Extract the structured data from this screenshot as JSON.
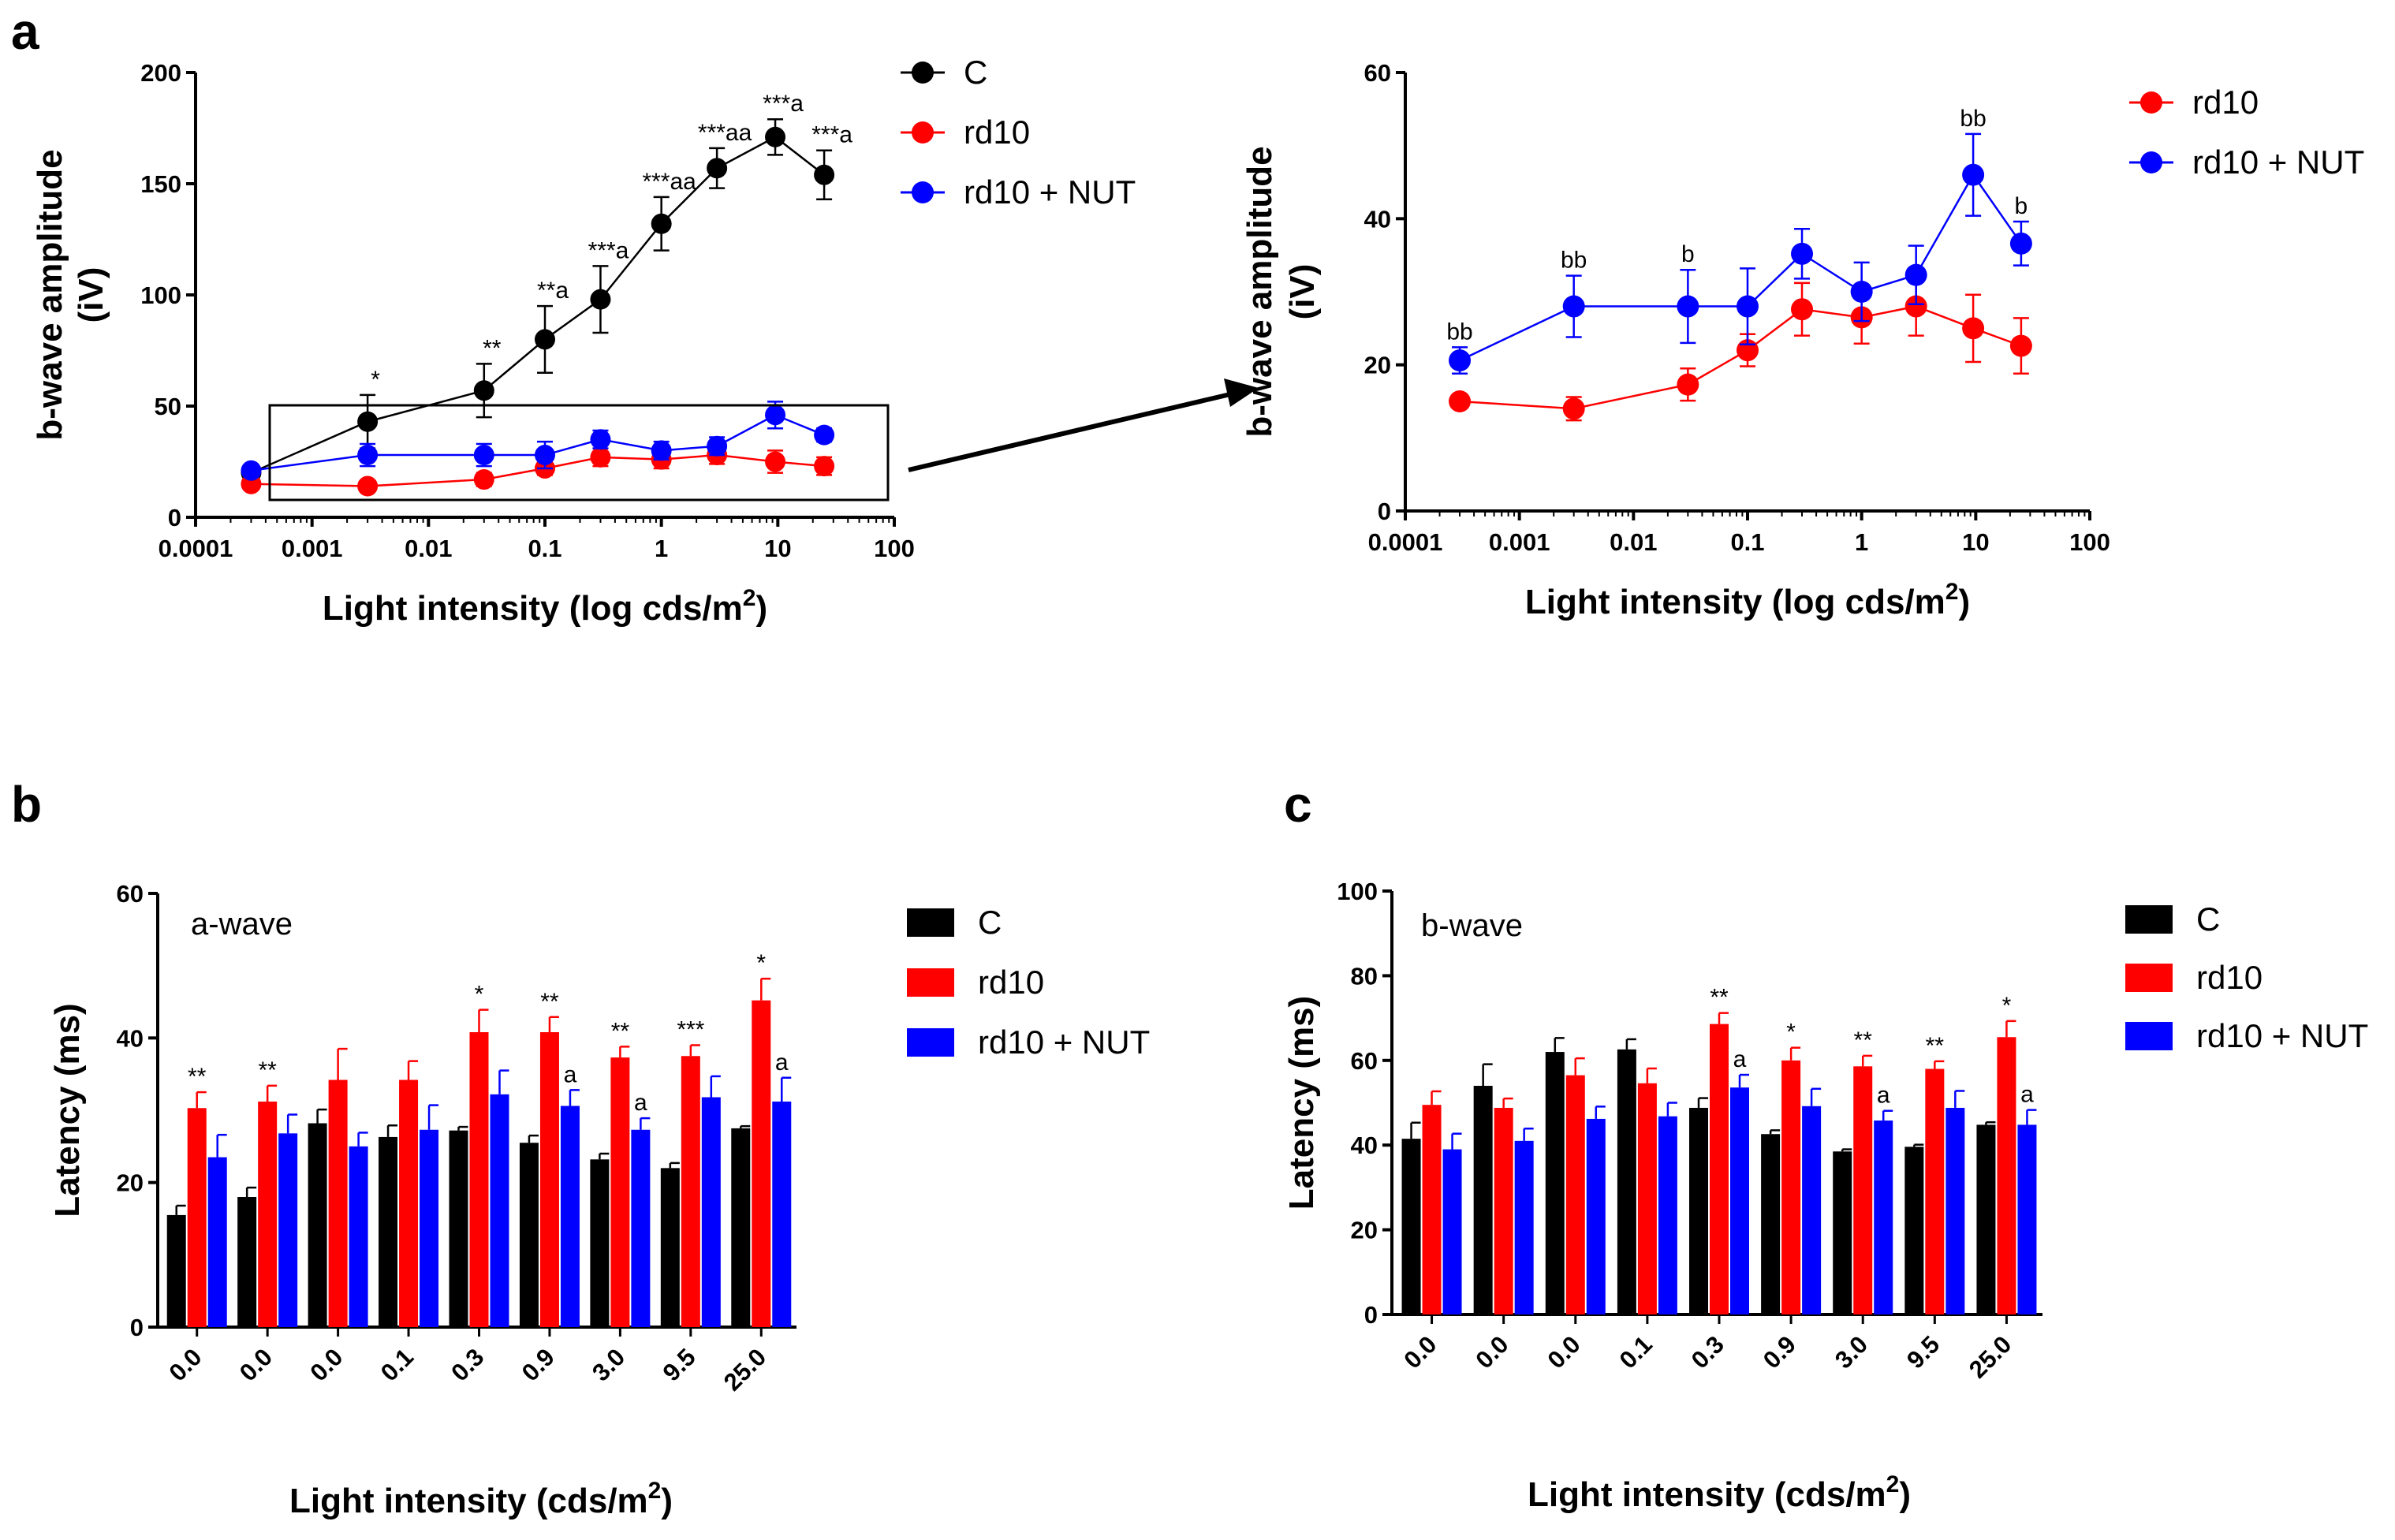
{
  "panels": {
    "a": "a",
    "b": "b",
    "c": "c"
  },
  "chart_data": [
    {
      "type": "line",
      "panel": "a-left",
      "xscale": "log",
      "x": [
        0.0003,
        0.003,
        0.03,
        0.1,
        0.3,
        1,
        3,
        9.5,
        25
      ],
      "xticks": [
        0.0001,
        0.001,
        0.01,
        0.1,
        1,
        10,
        100
      ],
      "xtick_labels": [
        "0.0001",
        "0.001",
        "0.01",
        "0.1",
        "1",
        "10",
        "100"
      ],
      "ylim": [
        0,
        200
      ],
      "yticks": [
        0,
        50,
        100,
        150,
        200
      ],
      "ytick_labels": [
        "0",
        "50",
        "100",
        "150",
        "200"
      ],
      "xlabel": "Light intensity (log cds/m",
      "xlabel_sup": "2",
      "xlabel_end": ")",
      "ylabel_line1": "b-wave amplitude",
      "ylabel_line2": "(iV)",
      "legend": [
        "C",
        "rd10",
        "rd10 + NUT"
      ],
      "series": [
        {
          "name": "C",
          "color": "#000000",
          "values": [
            20,
            43,
            57,
            80,
            98,
            132,
            157,
            171,
            154
          ],
          "errors": [
            3,
            12,
            12,
            15,
            15,
            12,
            9,
            8,
            11
          ]
        },
        {
          "name": "rd10",
          "color": "#ff0000",
          "values": [
            15,
            14,
            17,
            22,
            27,
            26,
            28,
            25,
            23
          ],
          "errors": [
            1,
            2,
            3,
            3,
            4,
            4,
            4,
            5,
            4
          ]
        },
        {
          "name": "rd10 + NUT",
          "color": "#0000ff",
          "values": [
            21,
            28,
            28,
            28,
            35,
            30,
            32,
            46,
            37
          ],
          "errors": [
            2,
            5,
            5,
            6,
            4,
            4,
            4,
            6,
            3
          ]
        }
      ],
      "annotations": [
        "",
        "*",
        "**",
        "**a",
        "***a",
        "***aa",
        "***aa",
        "***a",
        "***a"
      ]
    },
    {
      "type": "line",
      "panel": "a-right",
      "xscale": "log",
      "x": [
        0.0003,
        0.003,
        0.03,
        0.1,
        0.3,
        1,
        3,
        9.5,
        25
      ],
      "xticks": [
        0.0001,
        0.001,
        0.01,
        0.1,
        1,
        10,
        100
      ],
      "xtick_labels": [
        "0.0001",
        "0.001",
        "0.01",
        "0.1",
        "1",
        "10",
        "100"
      ],
      "ylim": [
        0,
        60
      ],
      "yticks": [
        0,
        20,
        40,
        60
      ],
      "ytick_labels": [
        "0",
        "20",
        "40",
        "60"
      ],
      "xlabel": "Light intensity (log cds/m",
      "xlabel_sup": "2",
      "xlabel_end": ")",
      "ylabel_line1": "b-wave amplitude",
      "ylabel_line2": "(iV)",
      "legend": [
        "rd10",
        "rd10 + NUT"
      ],
      "series": [
        {
          "name": "rd10",
          "color": "#ff0000",
          "values": [
            15,
            14,
            17.3,
            22,
            27.6,
            26.5,
            28,
            25,
            22.6
          ],
          "errors": [
            0.7,
            1.6,
            2.2,
            2.2,
            3.6,
            3.6,
            4,
            4.6,
            3.8
          ]
        },
        {
          "name": "rd10 + NUT",
          "color": "#0000ff",
          "values": [
            20.6,
            28,
            28,
            28,
            35.2,
            30,
            32.3,
            46,
            36.6
          ],
          "errors": [
            1.8,
            4.2,
            5,
            5.2,
            3.4,
            4,
            4,
            5.6,
            3
          ]
        }
      ],
      "annotations": [
        "bb",
        "bb",
        "b",
        "",
        "",
        "",
        "",
        "bb",
        "b"
      ]
    },
    {
      "type": "bar",
      "panel": "b",
      "inset_label": "a-wave",
      "categories": [
        "0.0",
        "0.0",
        "0.0",
        "0.1",
        "0.3",
        "0.9",
        "3.0",
        "9.5",
        "25.0"
      ],
      "ylim": [
        0,
        60
      ],
      "yticks": [
        0,
        20,
        40,
        60
      ],
      "ytick_labels": [
        "0",
        "20",
        "40",
        "60"
      ],
      "ylabel": "Latency (ms)",
      "xlabel": "Light intensity (cds/m",
      "xlabel_sup": "2",
      "xlabel_end": ")",
      "legend": [
        "C",
        "rd10",
        "rd10 + NUT"
      ],
      "series": [
        {
          "name": "C",
          "color": "#000000",
          "values": [
            15.5,
            18,
            28.2,
            26.3,
            27.2,
            25.5,
            23.2,
            22,
            27.5
          ],
          "errors": [
            1.3,
            1.3,
            1.9,
            1.6,
            0.5,
            1.0,
            0.8,
            0.7,
            0.3
          ]
        },
        {
          "name": "rd10",
          "color": "#ff0000",
          "values": [
            30.3,
            31.2,
            34.2,
            34.2,
            40.8,
            40.8,
            37.3,
            37.5,
            45.2
          ],
          "errors": [
            2.2,
            2.2,
            4.3,
            2.6,
            3.1,
            2.1,
            1.5,
            1.5,
            3.0
          ]
        },
        {
          "name": "rd10 + NUT",
          "color": "#0000ff",
          "values": [
            23.5,
            26.8,
            25,
            27.3,
            32.2,
            30.6,
            27.3,
            31.8,
            31.2
          ],
          "errors": [
            3.1,
            2.6,
            1.9,
            3.4,
            3.3,
            2.2,
            1.6,
            2.9,
            3.3
          ]
        }
      ],
      "annotations": [
        {
          "index": 0,
          "series": 1,
          "text": "**"
        },
        {
          "index": 1,
          "series": 1,
          "text": "**"
        },
        {
          "index": 4,
          "series": 1,
          "text": "*"
        },
        {
          "index": 5,
          "series": 1,
          "text": "**"
        },
        {
          "index": 5,
          "series": 2,
          "text": "a"
        },
        {
          "index": 6,
          "series": 1,
          "text": "**"
        },
        {
          "index": 6,
          "series": 2,
          "text": "a"
        },
        {
          "index": 7,
          "series": 1,
          "text": "***"
        },
        {
          "index": 8,
          "series": 1,
          "text": "*"
        },
        {
          "index": 8,
          "series": 2,
          "text": "a"
        }
      ]
    },
    {
      "type": "bar",
      "panel": "c",
      "inset_label": "b-wave",
      "categories": [
        "0.0",
        "0.0",
        "0.0",
        "0.1",
        "0.3",
        "0.9",
        "3.0",
        "9.5",
        "25.0"
      ],
      "ylim": [
        0,
        100
      ],
      "yticks": [
        0,
        20,
        40,
        60,
        80,
        100
      ],
      "ytick_labels": [
        "0",
        "20",
        "40",
        "60",
        "80",
        "100"
      ],
      "ylabel": "Latency (ms)",
      "xlabel": "Light intensity (cds/m",
      "xlabel_sup": "2",
      "xlabel_end": ")",
      "legend": [
        "C",
        "rd10",
        "rd10 + NUT"
      ],
      "series": [
        {
          "name": "C",
          "color": "#000000",
          "values": [
            41.5,
            54,
            62,
            62.6,
            48.8,
            42.6,
            38.5,
            39.6,
            44.8
          ],
          "errors": [
            3.8,
            5.1,
            3.3,
            2.4,
            2.3,
            0.9,
            0.5,
            0.5,
            0.6
          ]
        },
        {
          "name": "rd10",
          "color": "#ff0000",
          "values": [
            49.5,
            48.8,
            56.5,
            54.6,
            68.6,
            60,
            58.6,
            58,
            65.5
          ],
          "errors": [
            3.2,
            2.2,
            4.0,
            3.5,
            2.6,
            3.0,
            2.5,
            1.8,
            3.8
          ]
        },
        {
          "name": "rd10 + NUT",
          "color": "#0000ff",
          "values": [
            39,
            41,
            46.2,
            46.8,
            53.6,
            49.2,
            45.8,
            48.8,
            44.8
          ],
          "errors": [
            3.7,
            2.9,
            2.9,
            3.2,
            3.0,
            4.1,
            2.3,
            4.0,
            3.5
          ]
        }
      ],
      "annotations": [
        {
          "index": 4,
          "series": 1,
          "text": "**"
        },
        {
          "index": 4,
          "series": 2,
          "text": "a"
        },
        {
          "index": 5,
          "series": 1,
          "text": "*"
        },
        {
          "index": 6,
          "series": 1,
          "text": "**"
        },
        {
          "index": 6,
          "series": 2,
          "text": "a"
        },
        {
          "index": 7,
          "series": 1,
          "text": "**"
        },
        {
          "index": 8,
          "series": 1,
          "text": "*"
        },
        {
          "index": 8,
          "series": 2,
          "text": "a"
        }
      ]
    }
  ]
}
